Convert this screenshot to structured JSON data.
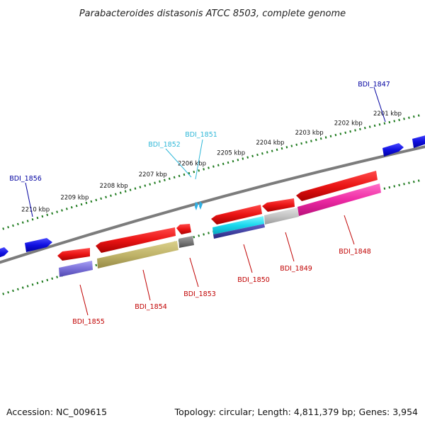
{
  "title": "Parabacteroides distasonis ATCC 8503, complete genome",
  "footer": {
    "accession": "Accession: NC_009615",
    "summary": "Topology: circular; Length: 4,811,379 bp; Genes: 3,954"
  },
  "colors": {
    "backbone": "#8c8c8c",
    "tick_dots": "#1e7a1e",
    "forward_gene": "#1010e0",
    "reverse_gene": "#e01818",
    "label_forward": "#0000a0",
    "label_cyan": "#30b8d8",
    "label_reverse": "#c00000"
  },
  "scale_ticks": [
    {
      "label": "2201 kbp",
      "kbp": 2201
    },
    {
      "label": "2202 kbp",
      "kbp": 2202
    },
    {
      "label": "2203 kbp",
      "kbp": 2203
    },
    {
      "label": "2204 kbp",
      "kbp": 2204
    },
    {
      "label": "2205 kbp",
      "kbp": 2205
    },
    {
      "label": "2206 kbp",
      "kbp": 2206
    },
    {
      "label": "2207 kbp",
      "kbp": 2207
    },
    {
      "label": "2208 kbp",
      "kbp": 2208
    },
    {
      "label": "2209 kbp",
      "kbp": 2209
    },
    {
      "label": "2210 kbp",
      "kbp": 2210
    }
  ],
  "gene_labels": {
    "forward": [
      {
        "name": "BDI_1847",
        "color": "#0000a0"
      },
      {
        "name": "BDI_1851",
        "color": "#30b8d8"
      },
      {
        "name": "BDI_1852",
        "color": "#30b8d8"
      },
      {
        "name": "BDI_1856",
        "color": "#0000a0"
      }
    ],
    "reverse": [
      {
        "name": "BDI_1848",
        "color": "#c00000"
      },
      {
        "name": "BDI_1849",
        "color": "#c00000"
      },
      {
        "name": "BDI_1850",
        "color": "#c00000"
      },
      {
        "name": "BDI_1853",
        "color": "#c00000"
      },
      {
        "name": "BDI_1854",
        "color": "#c00000"
      },
      {
        "name": "BDI_1855",
        "color": "#c00000"
      }
    ]
  }
}
